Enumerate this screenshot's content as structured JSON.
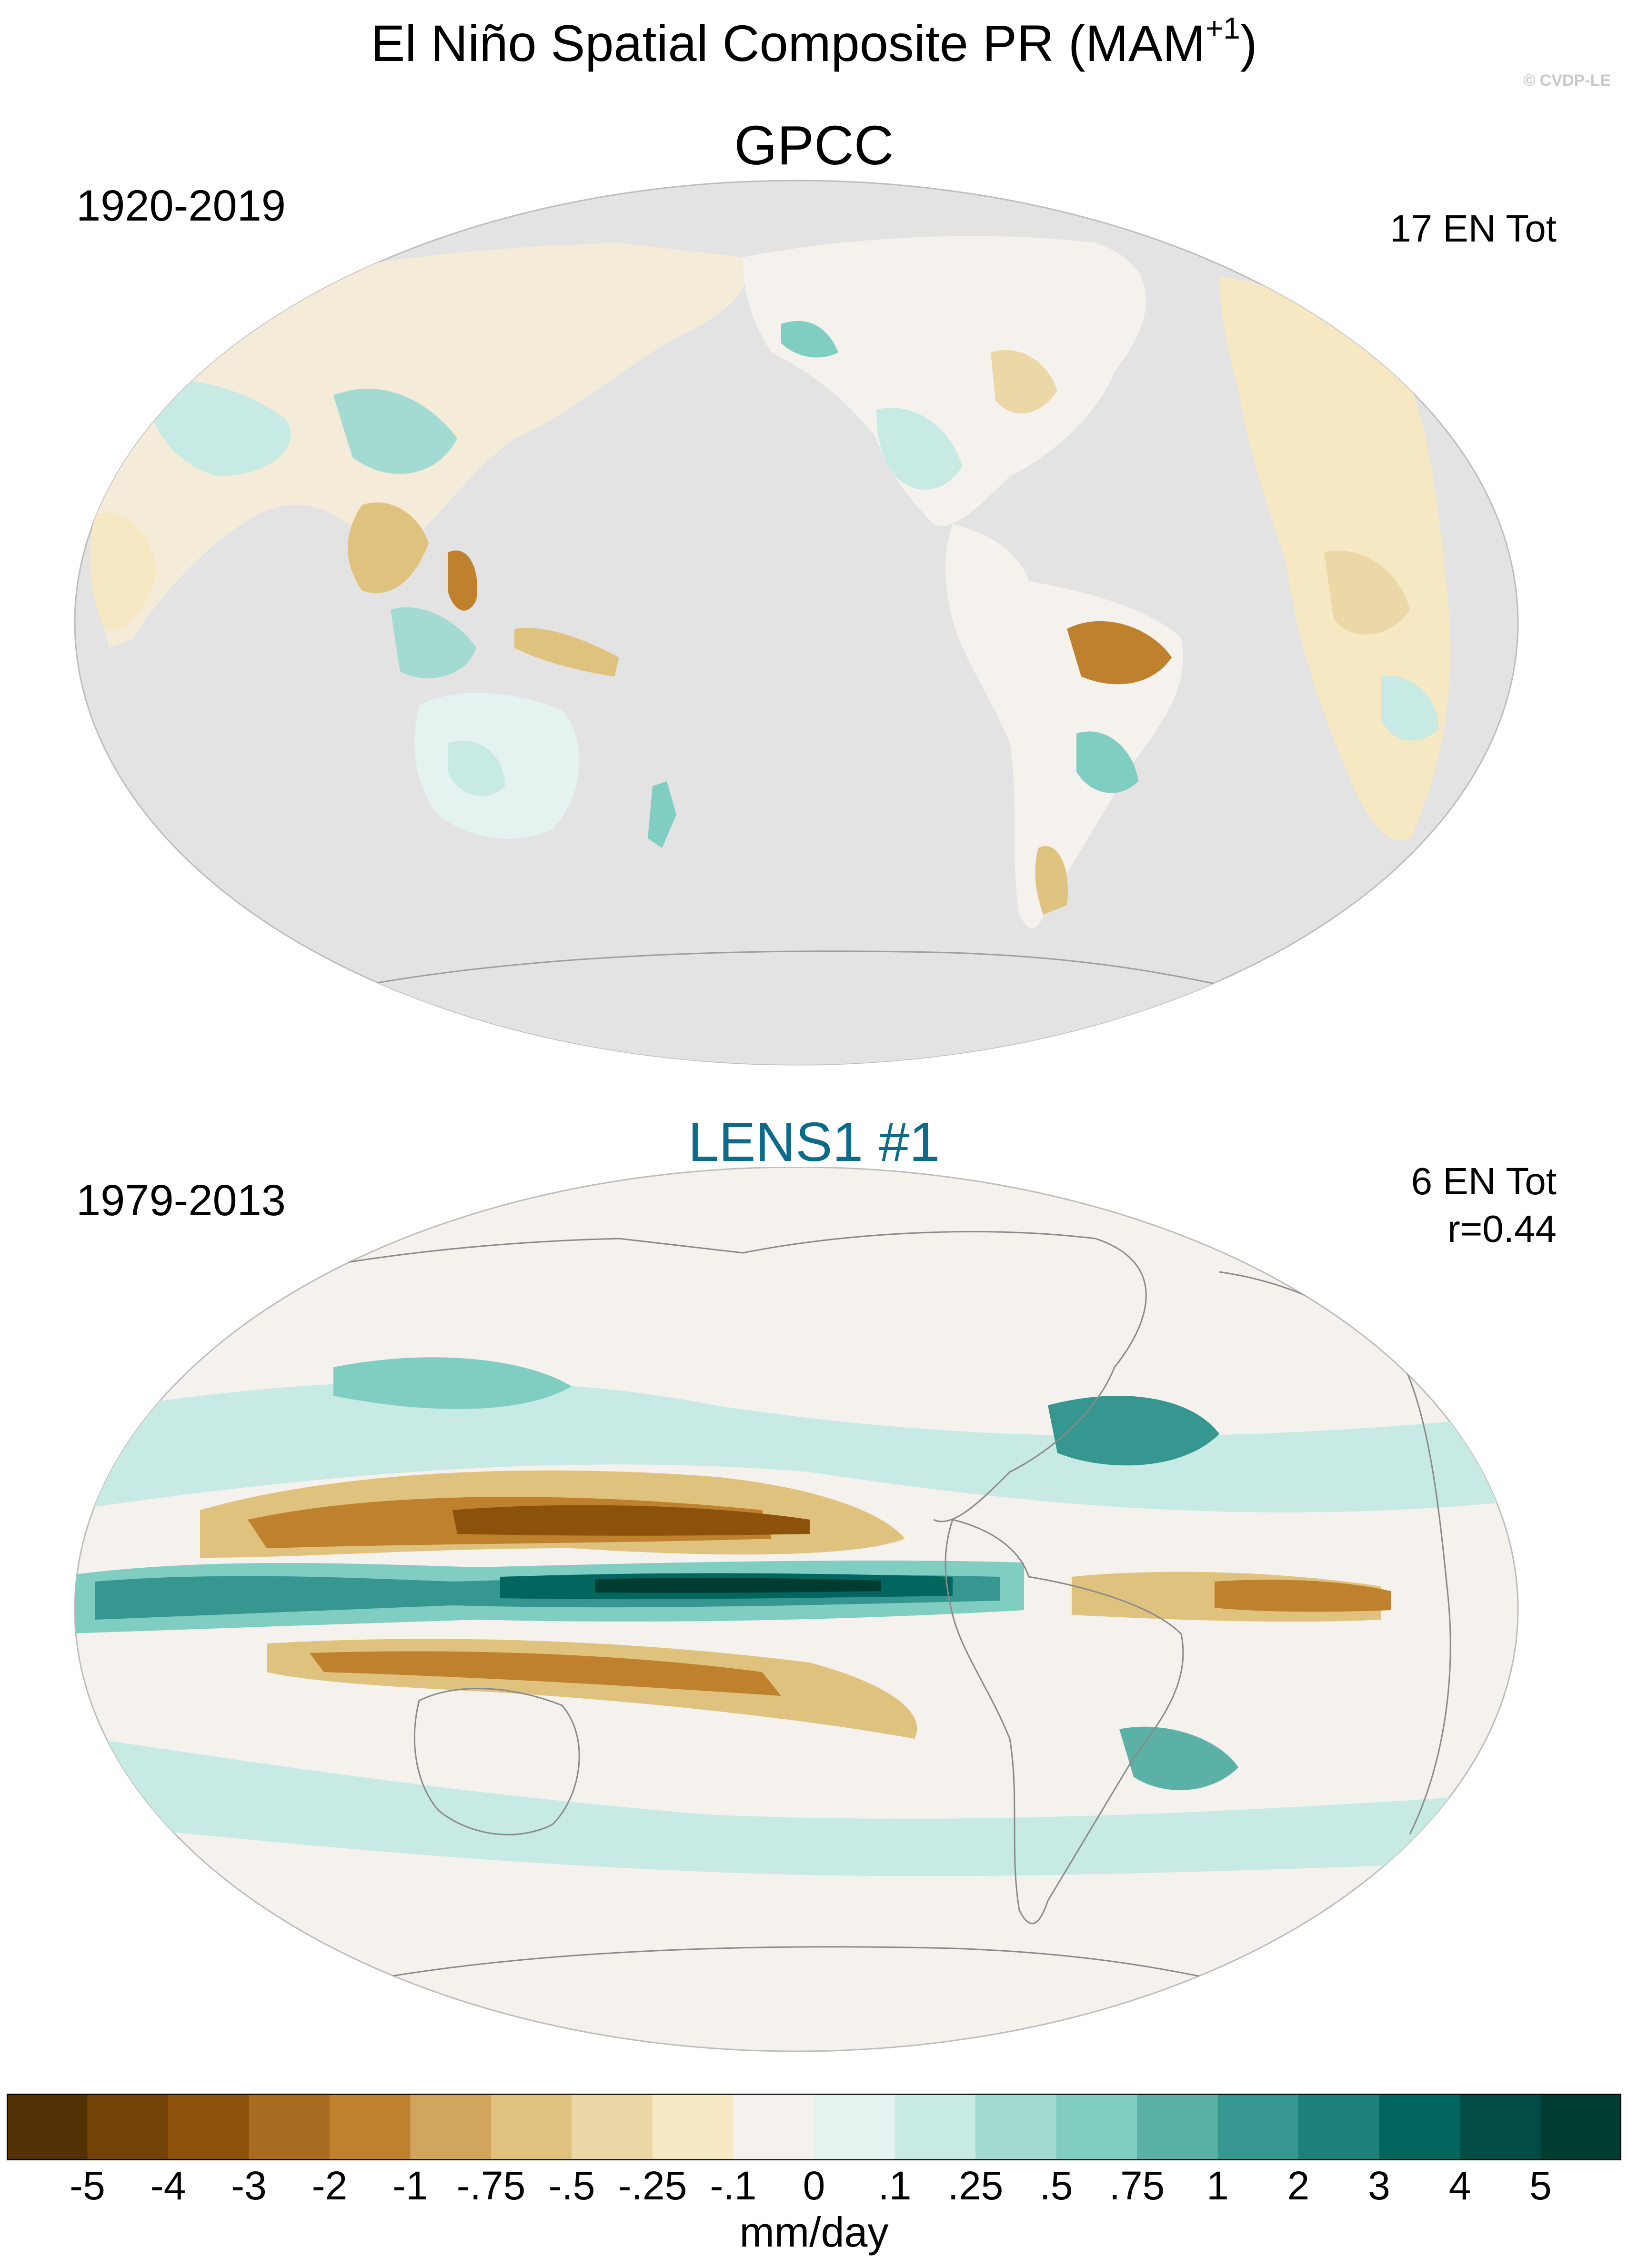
{
  "title": {
    "main": "El Niño Spatial Composite PR (MAM",
    "superscript": "+1",
    "close": ")"
  },
  "watermark": "© CVDP-LE",
  "panels": [
    {
      "title": "GPCC",
      "period": "1920-2019",
      "notes": [
        "17 EN Tot"
      ],
      "missing_color": "#e3e3e3"
    },
    {
      "title": "LENS1 #1",
      "title_color": "#0c6a8a",
      "period": "1979-2013",
      "notes": [
        "6 EN Tot",
        "r=0.44"
      ]
    }
  ],
  "colorbar": {
    "units": "mm/day",
    "labels": [
      "-5",
      "-4",
      "-3",
      "-2",
      "-1",
      "-.75",
      "-.5",
      "-.25",
      "-.1",
      "0",
      ".1",
      ".25",
      ".5",
      ".75",
      "1",
      "2",
      "3",
      "4",
      "5"
    ],
    "colors": [
      "#543005",
      "#744308",
      "#8c510a",
      "#a86b1f",
      "#bf812d",
      "#d2a55f",
      "#dfc27d",
      "#ecd7a7",
      "#f6e8c3",
      "#f5f2ee",
      "#e4f2f0",
      "#c7eae5",
      "#a3dbd2",
      "#80cdc1",
      "#5bb1a5",
      "#35978f",
      "#1d8079",
      "#01665e",
      "#014d45",
      "#003c30"
    ]
  }
}
